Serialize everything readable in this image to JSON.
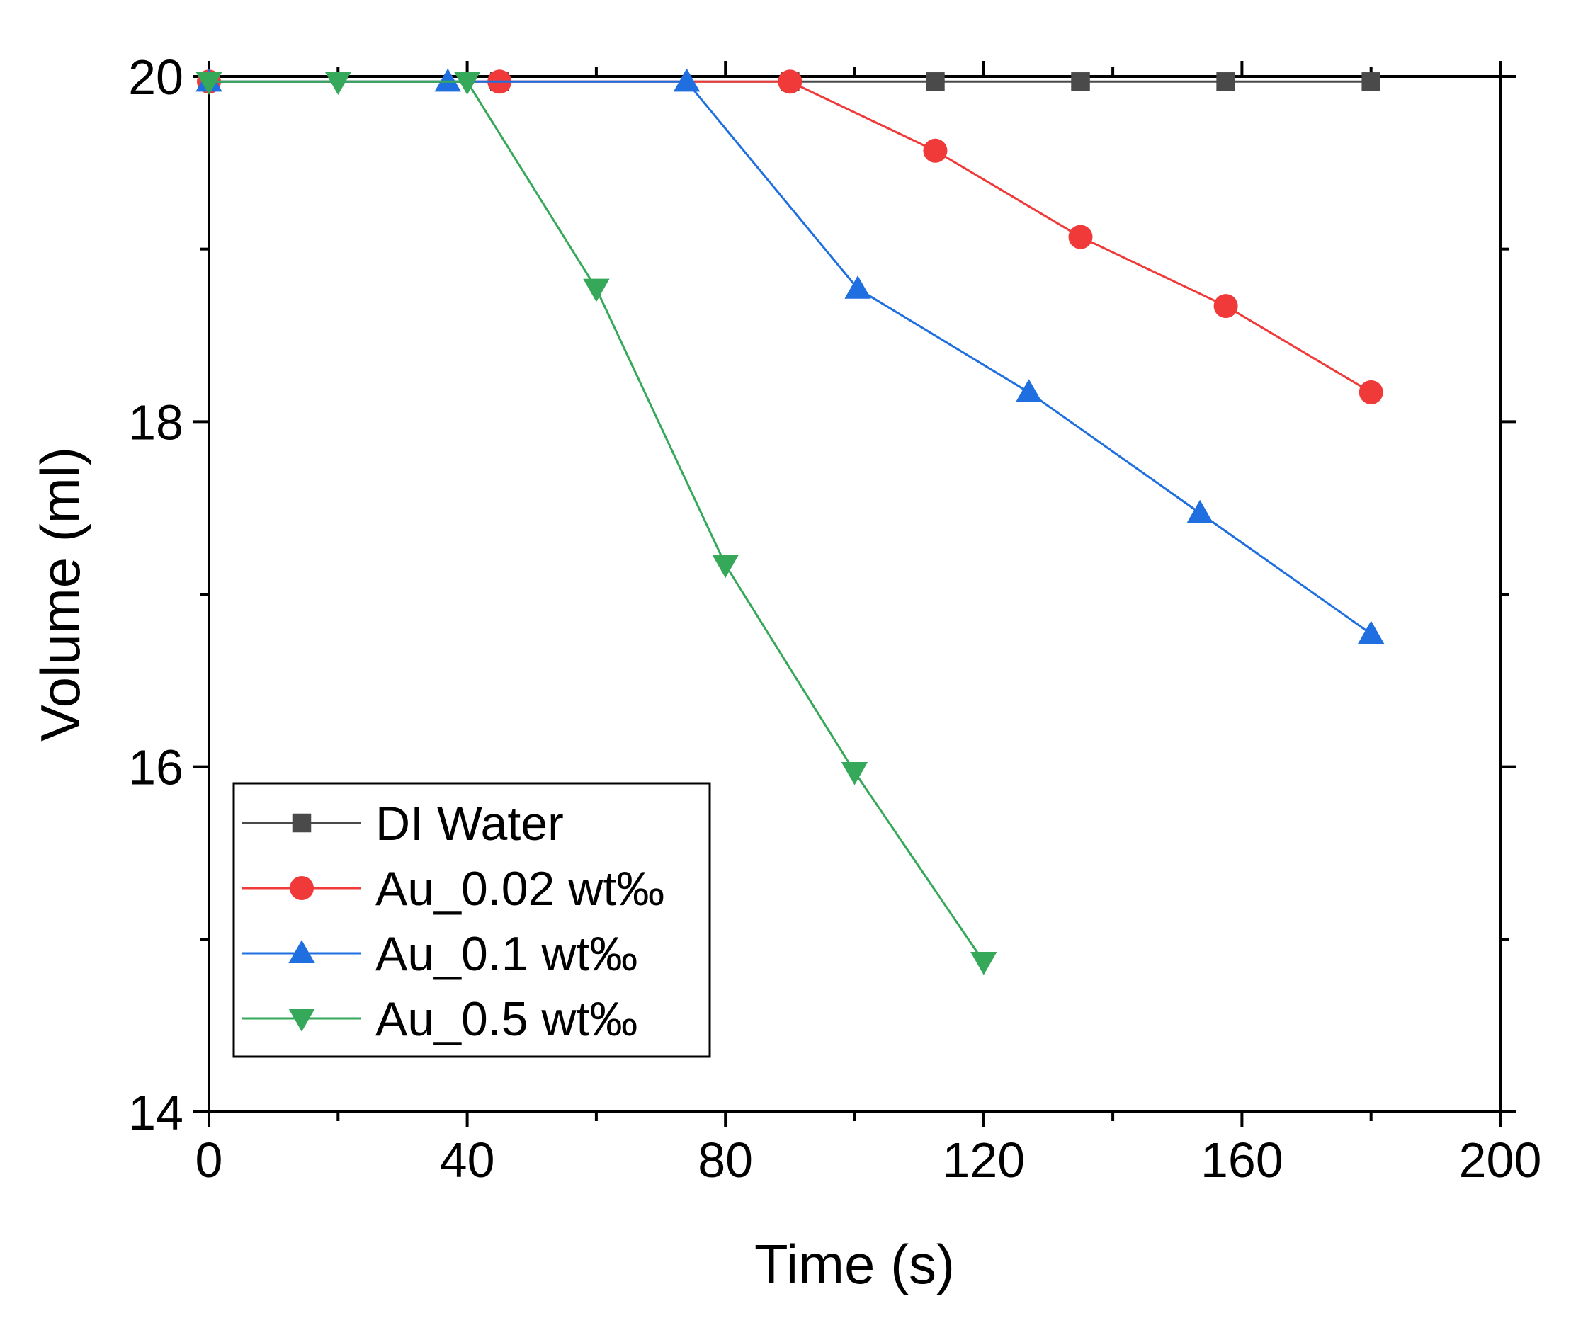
{
  "chart_data": {
    "type": "line",
    "title": "",
    "xlabel": "Time (s)",
    "ylabel": "Volume (ml)",
    "xlim": [
      0,
      200
    ],
    "ylim": [
      14,
      20
    ],
    "xticks": [
      0,
      40,
      80,
      120,
      160,
      200
    ],
    "xtick_labels": [
      "0",
      "40",
      "80",
      "120",
      "160",
      "200"
    ],
    "xticks_minor": [
      20,
      60,
      100,
      140,
      180
    ],
    "yticks": [
      14,
      16,
      18,
      20
    ],
    "ytick_labels": [
      "14",
      "16",
      "18",
      "20"
    ],
    "yticks_minor": [
      15,
      17,
      19
    ],
    "grid": false,
    "legend_position": "bottom-left",
    "series": [
      {
        "name": "DI Water",
        "color": "#4a4a4a",
        "marker": "square",
        "x": [
          0,
          45,
          90,
          112.5,
          135,
          157.5,
          180
        ],
        "y": [
          19.97,
          19.97,
          19.97,
          19.97,
          19.97,
          19.97,
          19.97
        ]
      },
      {
        "name": "Au_0.02 wt‰",
        "color": "#f03a3a",
        "marker": "circle",
        "x": [
          0,
          45,
          90,
          112.5,
          135,
          157.5,
          180
        ],
        "y": [
          19.97,
          19.97,
          19.97,
          19.57,
          19.07,
          18.67,
          18.17
        ]
      },
      {
        "name": "Au_0.1 wt‰",
        "color": "#1f6fe0",
        "marker": "triangle-up",
        "x": [
          0,
          37,
          74,
          100.5,
          127,
          153.5,
          180
        ],
        "y": [
          19.97,
          19.97,
          19.97,
          18.77,
          18.17,
          17.47,
          16.77
        ]
      },
      {
        "name": "Au_0.5 wt‰",
        "color": "#35a85a",
        "marker": "triangle-down",
        "x": [
          0,
          20,
          40,
          60,
          80,
          100,
          120
        ],
        "y": [
          19.97,
          19.97,
          19.97,
          18.77,
          17.17,
          15.97,
          14.87
        ]
      }
    ]
  }
}
